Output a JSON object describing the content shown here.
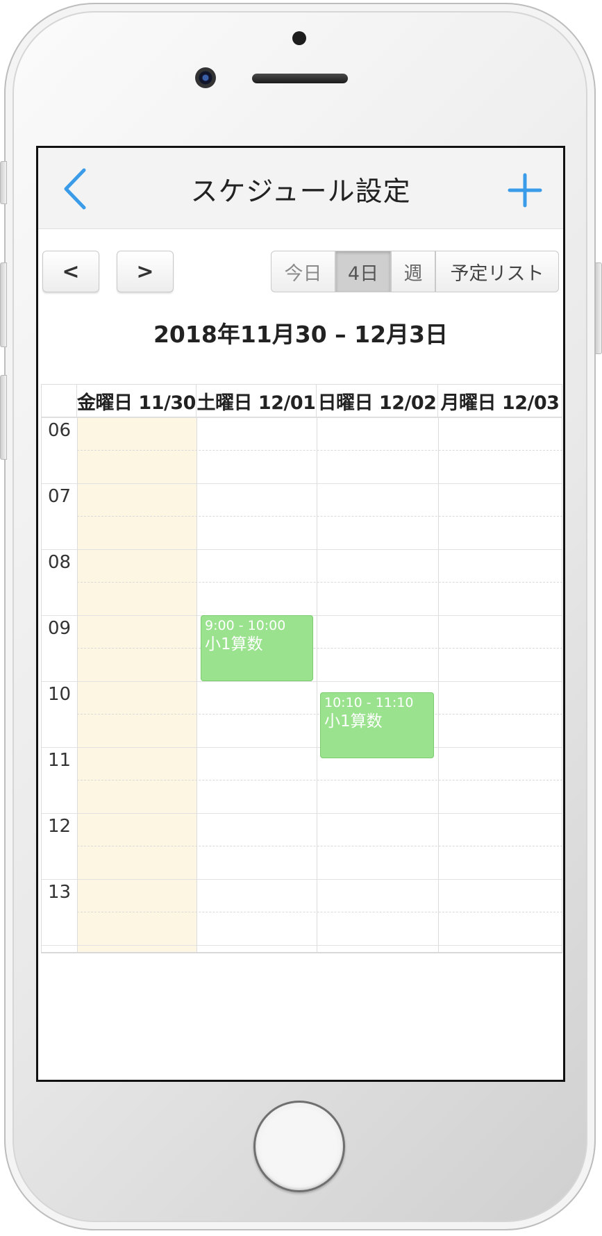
{
  "header": {
    "title": "スケジュール設定",
    "back_icon": "chevron-left-icon",
    "add_icon": "plus-icon",
    "accent_color": "#3a9be8"
  },
  "toolbar": {
    "prev_label": "<",
    "next_label": ">",
    "views": {
      "today": "今日",
      "four_day": "4日",
      "week": "週",
      "list": "予定リスト"
    },
    "selected_view": "4日"
  },
  "range_label": "2018年11月30 – 12月3日",
  "calendar": {
    "days": [
      "金曜日 11/30",
      "土曜日 12/01",
      "日曜日 12/02",
      "月曜日 12/03"
    ],
    "highlighted_day": "金曜日 11/30",
    "hours": [
      "06",
      "07",
      "08",
      "09",
      "10",
      "11",
      "12",
      "13"
    ],
    "events": [
      {
        "day": "土曜日 12/01",
        "time": "9:00 - 10:00",
        "title": "小1算数",
        "color": "#9ae28e"
      },
      {
        "day": "日曜日 12/02",
        "time": "10:10 - 11:10",
        "title": "小1算数",
        "color": "#9ae28e"
      }
    ]
  }
}
